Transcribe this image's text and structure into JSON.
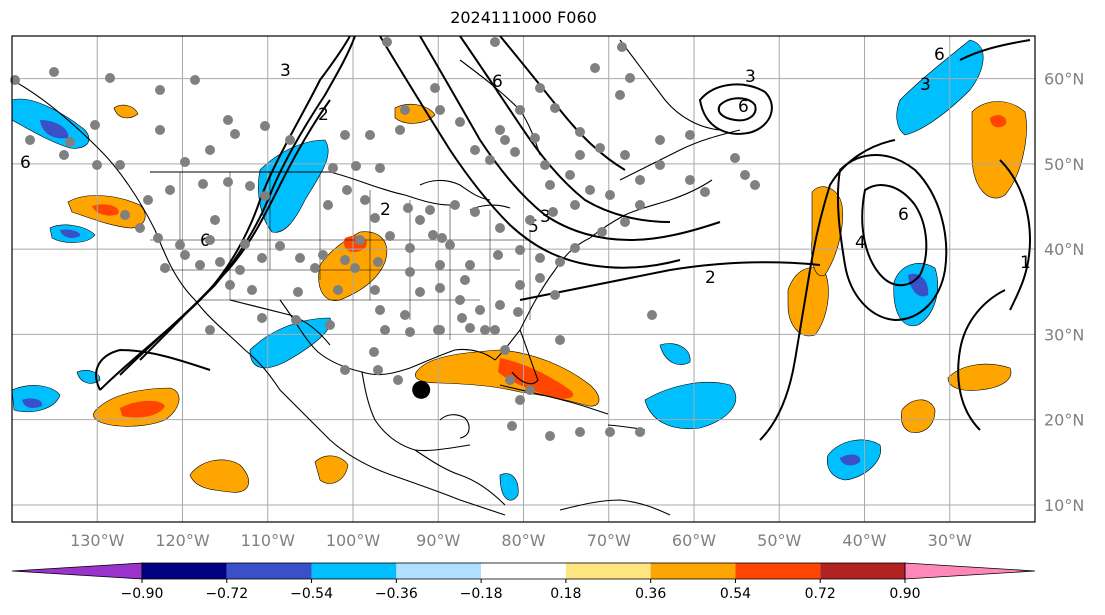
{
  "title": "2024111000 F060",
  "map": {
    "lon_range": [
      -140,
      -20
    ],
    "lat_range": [
      8,
      65
    ],
    "lat_gridlines": [
      10,
      20,
      30,
      40,
      50,
      60
    ],
    "lon_gridlines": [
      -130,
      -120,
      -110,
      -100,
      -90,
      -80,
      -70,
      -60,
      -50,
      -40,
      -30
    ],
    "lat_labels": [
      "10°N",
      "20°N",
      "30°N",
      "40°N",
      "50°N",
      "60°N"
    ],
    "lon_labels": [
      "130°W",
      "120°W",
      "110°W",
      "100°W",
      "90°W",
      "80°W",
      "70°W",
      "60°W",
      "50°W",
      "40°W",
      "30°W"
    ],
    "storm_marker": {
      "lon": -92,
      "lat": 23.5
    },
    "contour_labels": [
      "3",
      "2",
      "6",
      "3",
      "6",
      "6",
      "6",
      "2",
      "4",
      "2",
      "1",
      "5",
      "3",
      "6",
      "3",
      "6"
    ]
  },
  "colorbar": {
    "ticks": [
      "−0.90",
      "−0.72",
      "−0.54",
      "−0.36",
      "−0.18",
      "0.18",
      "0.36",
      "0.54",
      "0.72",
      "0.90"
    ],
    "colors": [
      "#9933cc",
      "#000080",
      "#3a50c8",
      "#00bfff",
      "#b0e0ff",
      "#ffffff",
      "#ffe680",
      "#ffa500",
      "#ff4500",
      "#b22222",
      "#ff88b8"
    ]
  },
  "colors": {
    "grid": "#a9a9a9",
    "coast": "#000000",
    "orange": "#ffa500",
    "red": "#ff4500",
    "lightblue": "#00bfff",
    "blue": "#3a50c8"
  }
}
